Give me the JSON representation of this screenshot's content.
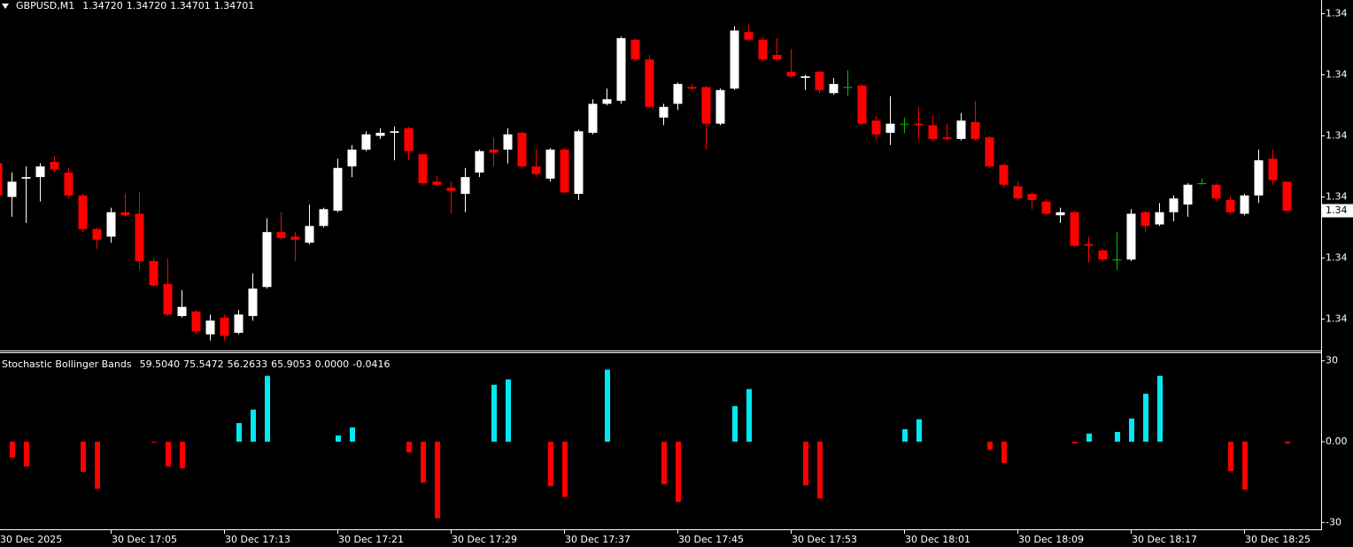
{
  "chart_data": [
    {
      "type": "candlestick",
      "title": "GBPUSD,M1",
      "title_values": [
        "1.34720",
        "1.34720",
        "1.34701",
        "1.34701"
      ],
      "up_color": "#ffffff",
      "down_color": "#ff0000",
      "doji_color": "#00c000",
      "ylim": [
        1.3461,
        1.34839
      ],
      "yticks": [
        {
          "value": 1.3483,
          "label": "1.34"
        },
        {
          "value": 1.3479,
          "label": "1.34"
        },
        {
          "value": 1.3475,
          "label": "1.34"
        },
        {
          "value": 1.3471,
          "label": "1.34"
        },
        {
          "value": 1.3467,
          "label": "1.34"
        },
        {
          "value": 1.3463,
          "label": "1.34"
        }
      ],
      "current_price_label": "1.34",
      "candles": [
        [
          1.34732,
          1.34733,
          1.347,
          1.34711
        ],
        [
          1.3471,
          1.34726,
          1.34697,
          1.3472
        ],
        [
          1.34722,
          1.3473,
          1.34693,
          1.34723
        ],
        [
          1.34723,
          1.34732,
          1.34707,
          1.3473
        ],
        [
          1.34733,
          1.34737,
          1.34726,
          1.34728
        ],
        [
          1.34726,
          1.34729,
          1.34709,
          1.34711
        ],
        [
          1.34711,
          1.34712,
          1.34687,
          1.34689
        ],
        [
          1.34689,
          1.3469,
          1.34676,
          1.34682
        ],
        [
          1.34684,
          1.34703,
          1.3468,
          1.347
        ],
        [
          1.347,
          1.34712,
          1.34697,
          1.34698
        ],
        [
          1.34699,
          1.34713,
          1.34662,
          1.34668
        ],
        [
          1.34668,
          1.3467,
          1.34651,
          1.34652
        ],
        [
          1.34653,
          1.3467,
          1.34632,
          1.34633
        ],
        [
          1.34632,
          1.34649,
          1.34631,
          1.34638
        ],
        [
          1.34635,
          1.34636,
          1.3462,
          1.34622
        ],
        [
          1.3462,
          1.34633,
          1.34616,
          1.34629
        ],
        [
          1.34631,
          1.34633,
          1.34616,
          1.34619
        ],
        [
          1.34621,
          1.34636,
          1.3462,
          1.34633
        ],
        [
          1.34632,
          1.3466,
          1.34629,
          1.3465
        ],
        [
          1.34651,
          1.34696,
          1.3465,
          1.34687
        ],
        [
          1.34687,
          1.347,
          1.34682,
          1.34683
        ],
        [
          1.34684,
          1.34687,
          1.34668,
          1.34682
        ],
        [
          1.3468,
          1.34705,
          1.34679,
          1.34691
        ],
        [
          1.34691,
          1.34703,
          1.3469,
          1.34702
        ],
        [
          1.34701,
          1.34735,
          1.347,
          1.34729
        ],
        [
          1.3473,
          1.34744,
          1.34723,
          1.34741
        ],
        [
          1.34741,
          1.34753,
          1.3474,
          1.34751
        ],
        [
          1.3475,
          1.34755,
          1.34748,
          1.34752
        ],
        [
          1.34752,
          1.34756,
          1.34734,
          1.34753
        ],
        [
          1.34755,
          1.34756,
          1.34734,
          1.3474
        ],
        [
          1.34738,
          1.34738,
          1.34718,
          1.34719
        ],
        [
          1.3472,
          1.34724,
          1.34717,
          1.34718
        ],
        [
          1.34716,
          1.3472,
          1.34699,
          1.34714
        ],
        [
          1.34712,
          1.34729,
          1.347,
          1.34723
        ],
        [
          1.34726,
          1.34741,
          1.34723,
          1.3474
        ],
        [
          1.34741,
          1.34749,
          1.3473,
          1.34739
        ],
        [
          1.34741,
          1.34755,
          1.34732,
          1.34751
        ],
        [
          1.34752,
          1.34753,
          1.34729,
          1.3473
        ],
        [
          1.3473,
          1.34741,
          1.34723,
          1.34725
        ],
        [
          1.34722,
          1.34742,
          1.3472,
          1.34741
        ],
        [
          1.34741,
          1.34742,
          1.34712,
          1.34713
        ],
        [
          1.34712,
          1.34754,
          1.34708,
          1.34753
        ],
        [
          1.34752,
          1.34774,
          1.34751,
          1.34771
        ],
        [
          1.34771,
          1.34781,
          1.3477,
          1.34774
        ],
        [
          1.34773,
          1.34815,
          1.34771,
          1.34814
        ],
        [
          1.34813,
          1.34814,
          1.34799,
          1.348
        ],
        [
          1.348,
          1.34803,
          1.34768,
          1.34769
        ],
        [
          1.34762,
          1.34771,
          1.34757,
          1.34769
        ],
        [
          1.34771,
          1.34785,
          1.34767,
          1.34784
        ],
        [
          1.34782,
          1.34784,
          1.3478,
          1.34781
        ],
        [
          1.34782,
          1.34783,
          1.34741,
          1.34758
        ],
        [
          1.34758,
          1.34781,
          1.34757,
          1.3478
        ],
        [
          1.34781,
          1.34822,
          1.3478,
          1.34819
        ],
        [
          1.34818,
          1.34823,
          1.34812,
          1.34813
        ],
        [
          1.34813,
          1.34815,
          1.34799,
          1.348
        ],
        [
          1.34803,
          1.34814,
          1.34799,
          1.348
        ],
        [
          1.34792,
          1.34807,
          1.34788,
          1.34789
        ],
        [
          1.34788,
          1.3479,
          1.3478,
          1.34789
        ],
        [
          1.34792,
          1.34793,
          1.34778,
          1.3478
        ],
        [
          1.34778,
          1.34788,
          1.34777,
          1.34784
        ],
        [
          1.34782,
          1.34793,
          1.34776,
          1.34782
        ],
        [
          1.34783,
          1.34784,
          1.34757,
          1.34758
        ],
        [
          1.3476,
          1.34763,
          1.34747,
          1.34751
        ],
        [
          1.34752,
          1.34776,
          1.34744,
          1.34758
        ],
        [
          1.34758,
          1.34762,
          1.34752,
          1.34758
        ],
        [
          1.34758,
          1.34769,
          1.34748,
          1.34757
        ],
        [
          1.34757,
          1.34763,
          1.34747,
          1.34748
        ],
        [
          1.34749,
          1.34758,
          1.34747,
          1.34748
        ],
        [
          1.34748,
          1.34765,
          1.34747,
          1.3476
        ],
        [
          1.34759,
          1.34773,
          1.34747,
          1.34748
        ],
        [
          1.34749,
          1.3475,
          1.34729,
          1.3473
        ],
        [
          1.34731,
          1.34732,
          1.34716,
          1.34718
        ],
        [
          1.34717,
          1.3472,
          1.34708,
          1.34709
        ],
        [
          1.34712,
          1.34713,
          1.34702,
          1.34708
        ],
        [
          1.34707,
          1.34709,
          1.34698,
          1.34699
        ],
        [
          1.34698,
          1.34703,
          1.34693,
          1.347
        ],
        [
          1.347,
          1.34701,
          1.34677,
          1.34678
        ],
        [
          1.34679,
          1.34684,
          1.34667,
          1.34678
        ],
        [
          1.34675,
          1.34676,
          1.34668,
          1.34669
        ],
        [
          1.34669,
          1.34687,
          1.34662,
          1.34669
        ],
        [
          1.34669,
          1.34702,
          1.34668,
          1.34699
        ],
        [
          1.347,
          1.34701,
          1.34687,
          1.34691
        ],
        [
          1.34692,
          1.34706,
          1.34691,
          1.347
        ],
        [
          1.347,
          1.34711,
          1.34694,
          1.34709
        ],
        [
          1.34705,
          1.34719,
          1.34697,
          1.34718
        ],
        [
          1.34719,
          1.34722,
          1.34718,
          1.34719
        ],
        [
          1.34718,
          1.34719,
          1.34707,
          1.34709
        ],
        [
          1.34708,
          1.34711,
          1.34699,
          1.347
        ],
        [
          1.34699,
          1.34712,
          1.34698,
          1.34711
        ],
        [
          1.34711,
          1.34741,
          1.34706,
          1.34734
        ],
        [
          1.34735,
          1.34741,
          1.34718,
          1.34721
        ],
        [
          1.3472,
          1.3472,
          1.34701,
          1.34701
        ]
      ]
    },
    {
      "type": "bar",
      "title": "Stochastic Bollinger Bands",
      "title_values": [
        "59.5040",
        "75.5472",
        "56.2633",
        "65.9053",
        "0.0000",
        "-0.0416"
      ],
      "positive_color": "#00e8f0",
      "negative_color": "#ff0000",
      "ylim": [
        -32.5,
        32.5
      ],
      "yticks": [
        30,
        {
          "value": 0,
          "label": "0.00"
        },
        -30
      ],
      "categories": [
        "30 Dec 2025",
        null,
        null,
        null,
        null,
        null,
        null,
        null,
        "30 Dec 17:05",
        null,
        null,
        null,
        null,
        null,
        null,
        null,
        "30 Dec 17:13",
        null,
        null,
        null,
        null,
        null,
        null,
        null,
        "30 Dec 17:21",
        null,
        null,
        null,
        null,
        null,
        null,
        null,
        "30 Dec 17:29",
        null,
        null,
        null,
        null,
        null,
        null,
        null,
        "30 Dec 17:37",
        null,
        null,
        null,
        null,
        null,
        null,
        null,
        "30 Dec 17:45",
        null,
        null,
        null,
        null,
        null,
        null,
        null,
        "30 Dec 17:53",
        null,
        null,
        null,
        null,
        null,
        null,
        null,
        "30 Dec 18:01",
        null,
        null,
        null,
        null,
        null,
        null,
        null,
        "30 Dec 18:09",
        null,
        null,
        null,
        null,
        null,
        null,
        null,
        "30 Dec 18:17",
        null,
        null,
        null,
        null,
        null,
        null,
        null,
        "30 Dec 18:25",
        null,
        null,
        null
      ],
      "values": [
        null,
        -5.9,
        -9.2,
        null,
        null,
        null,
        -11.2,
        -17.5,
        null,
        null,
        null,
        -0.3,
        -9.2,
        -9.9,
        null,
        null,
        null,
        6.9,
        11.9,
        24.4,
        null,
        null,
        null,
        null,
        2.3,
        5.3,
        null,
        null,
        null,
        -4.0,
        -15.2,
        -28.4,
        null,
        null,
        null,
        21.1,
        23.1,
        null,
        null,
        -16.5,
        -20.5,
        null,
        null,
        26.7,
        null,
        null,
        null,
        -15.8,
        -22.4,
        null,
        null,
        null,
        13.2,
        19.5,
        null,
        null,
        null,
        -16.2,
        -21.1,
        null,
        null,
        null,
        null,
        null,
        4.6,
        8.3,
        null,
        null,
        null,
        null,
        -3.0,
        -7.9,
        null,
        null,
        null,
        null,
        -0.7,
        3.0,
        null,
        3.6,
        8.6,
        17.8,
        24.4,
        null,
        null,
        null,
        null,
        -10.9,
        -17.8,
        null,
        null,
        -0.7
      ]
    }
  ]
}
